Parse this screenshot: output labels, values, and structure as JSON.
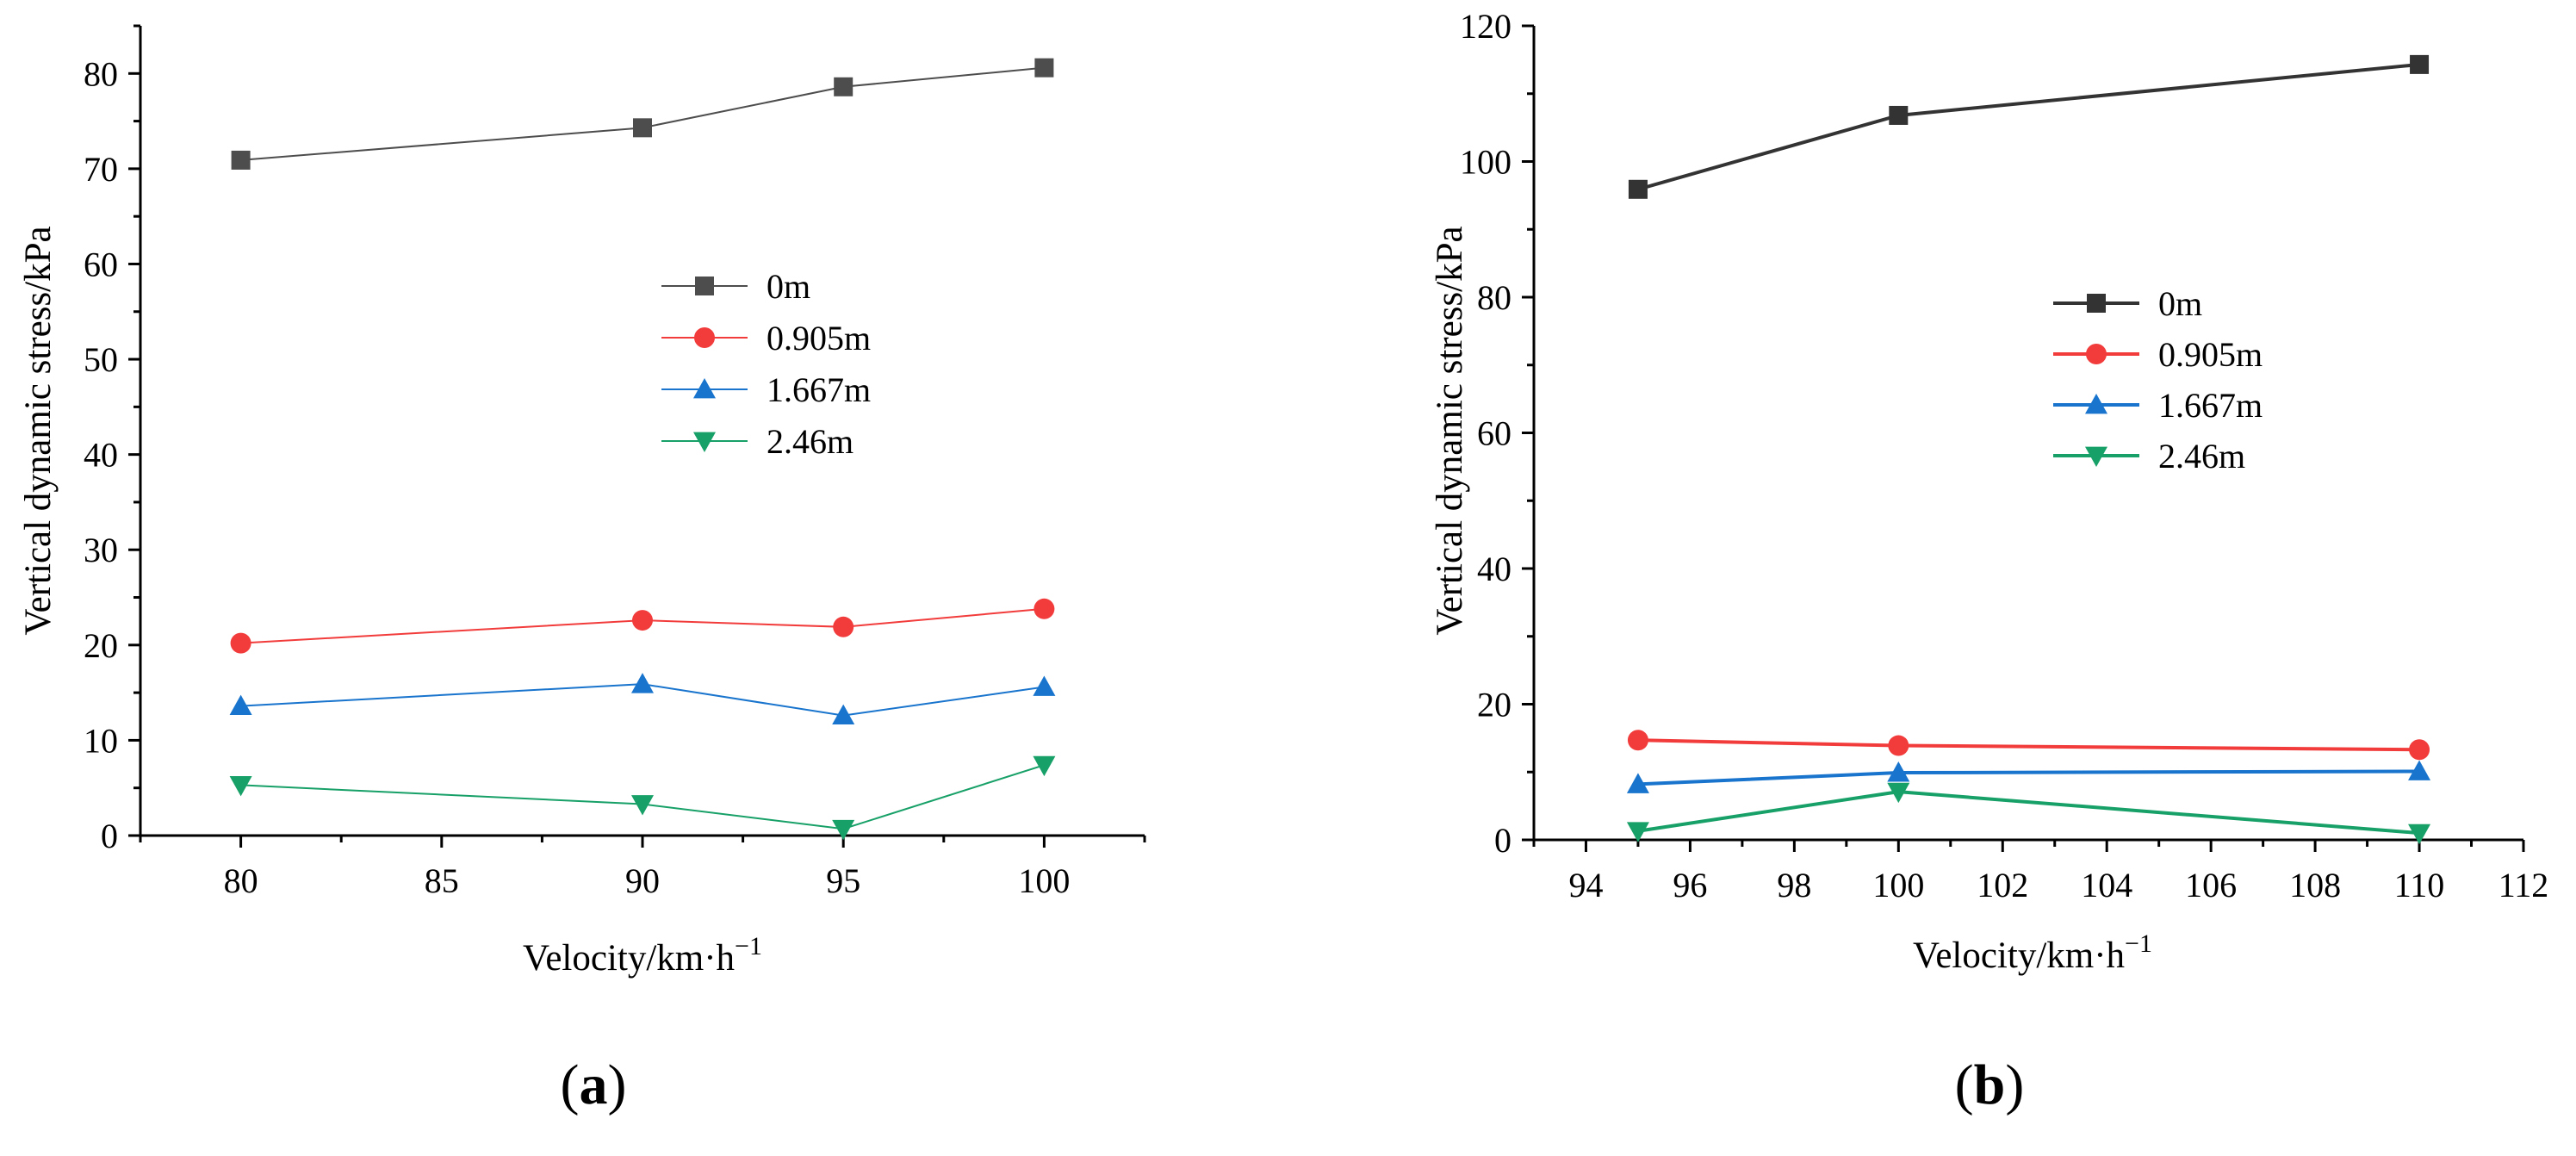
{
  "chart_data": [
    {
      "type": "line",
      "panel_label": "a",
      "title": "",
      "xlabel": "Velocity/km·h",
      "xlabel_sup": "−1",
      "ylabel": "Vertical dynamic stress/kPa",
      "xlim": [
        77.5,
        102.5
      ],
      "ylim": [
        0,
        85
      ],
      "xticks": [
        80,
        85,
        90,
        95,
        100
      ],
      "yticks": [
        0,
        10,
        20,
        30,
        40,
        50,
        60,
        70,
        80
      ],
      "x": [
        80,
        90,
        95,
        100
      ],
      "legend_position": "center",
      "series": [
        {
          "name": "0m",
          "values": [
            70.9,
            74.3,
            78.6,
            80.6
          ],
          "color": "#4d4d4d",
          "marker": "square"
        },
        {
          "name": "0.905m",
          "values": [
            20.2,
            22.6,
            21.9,
            23.8
          ],
          "color": "#f23c3c",
          "marker": "circle"
        },
        {
          "name": "1.667m",
          "values": [
            13.6,
            15.9,
            12.6,
            15.6
          ],
          "color": "#1874cd",
          "marker": "triangle-up"
        },
        {
          "name": "2.46m",
          "values": [
            5.3,
            3.3,
            0.7,
            7.4
          ],
          "color": "#17a067",
          "marker": "triangle-down"
        }
      ]
    },
    {
      "type": "line",
      "panel_label": "b",
      "title": "",
      "xlabel": "Velocity/km·h",
      "xlabel_sup": "−1",
      "ylabel": "Vertical dynamic stress/kPa",
      "xlim": [
        93,
        112
      ],
      "ylim": [
        0,
        120
      ],
      "xticks": [
        94,
        96,
        98,
        100,
        102,
        104,
        106,
        108,
        110,
        112
      ],
      "yticks": [
        0,
        20,
        40,
        60,
        80,
        100,
        120
      ],
      "x": [
        95,
        100,
        110
      ],
      "legend_position": "center",
      "series": [
        {
          "name": "0m",
          "values": [
            95.9,
            106.8,
            114.3
          ],
          "color": "#333333",
          "marker": "square"
        },
        {
          "name": "0.905m",
          "values": [
            14.7,
            13.9,
            13.3
          ],
          "color": "#f23c3c",
          "marker": "circle"
        },
        {
          "name": "1.667m",
          "values": [
            8.2,
            9.9,
            10.1
          ],
          "color": "#1874cd",
          "marker": "triangle-up"
        },
        {
          "name": "2.46m",
          "values": [
            1.3,
            7.1,
            1.0
          ],
          "color": "#17a067",
          "marker": "triangle-down"
        }
      ]
    }
  ]
}
